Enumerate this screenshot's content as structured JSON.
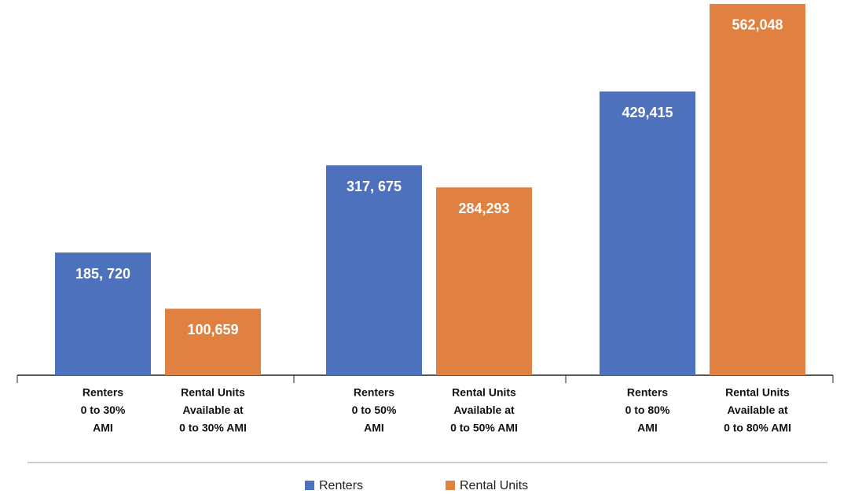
{
  "chart_data": {
    "type": "bar",
    "ylim": [
      0,
      565000
    ],
    "series": [
      {
        "name": "Renters",
        "color": "#4e71be",
        "categories": [
          [
            "Renters",
            "0 to 30%",
            "AMI"
          ],
          [
            "Renters",
            "0 to 50%",
            "AMI"
          ],
          [
            "Renters",
            "0 to 80%",
            "AMI"
          ]
        ],
        "values": [
          185720,
          317675,
          429415
        ],
        "value_labels": [
          "185, 720",
          "317, 675",
          "429,415"
        ]
      },
      {
        "name": "Rental Units",
        "color": "#e08142",
        "categories": [
          [
            "Rental Units",
            "Available at",
            "0 to 30% AMI"
          ],
          [
            "Rental Units",
            "Available at",
            "0 to 50% AMI"
          ],
          [
            "Rental Units",
            "Available at",
            "0 to 80% AMI"
          ]
        ],
        "values": [
          100659,
          284293,
          562048
        ],
        "value_labels": [
          "100,659",
          "284,293",
          "562,048"
        ]
      }
    ]
  }
}
